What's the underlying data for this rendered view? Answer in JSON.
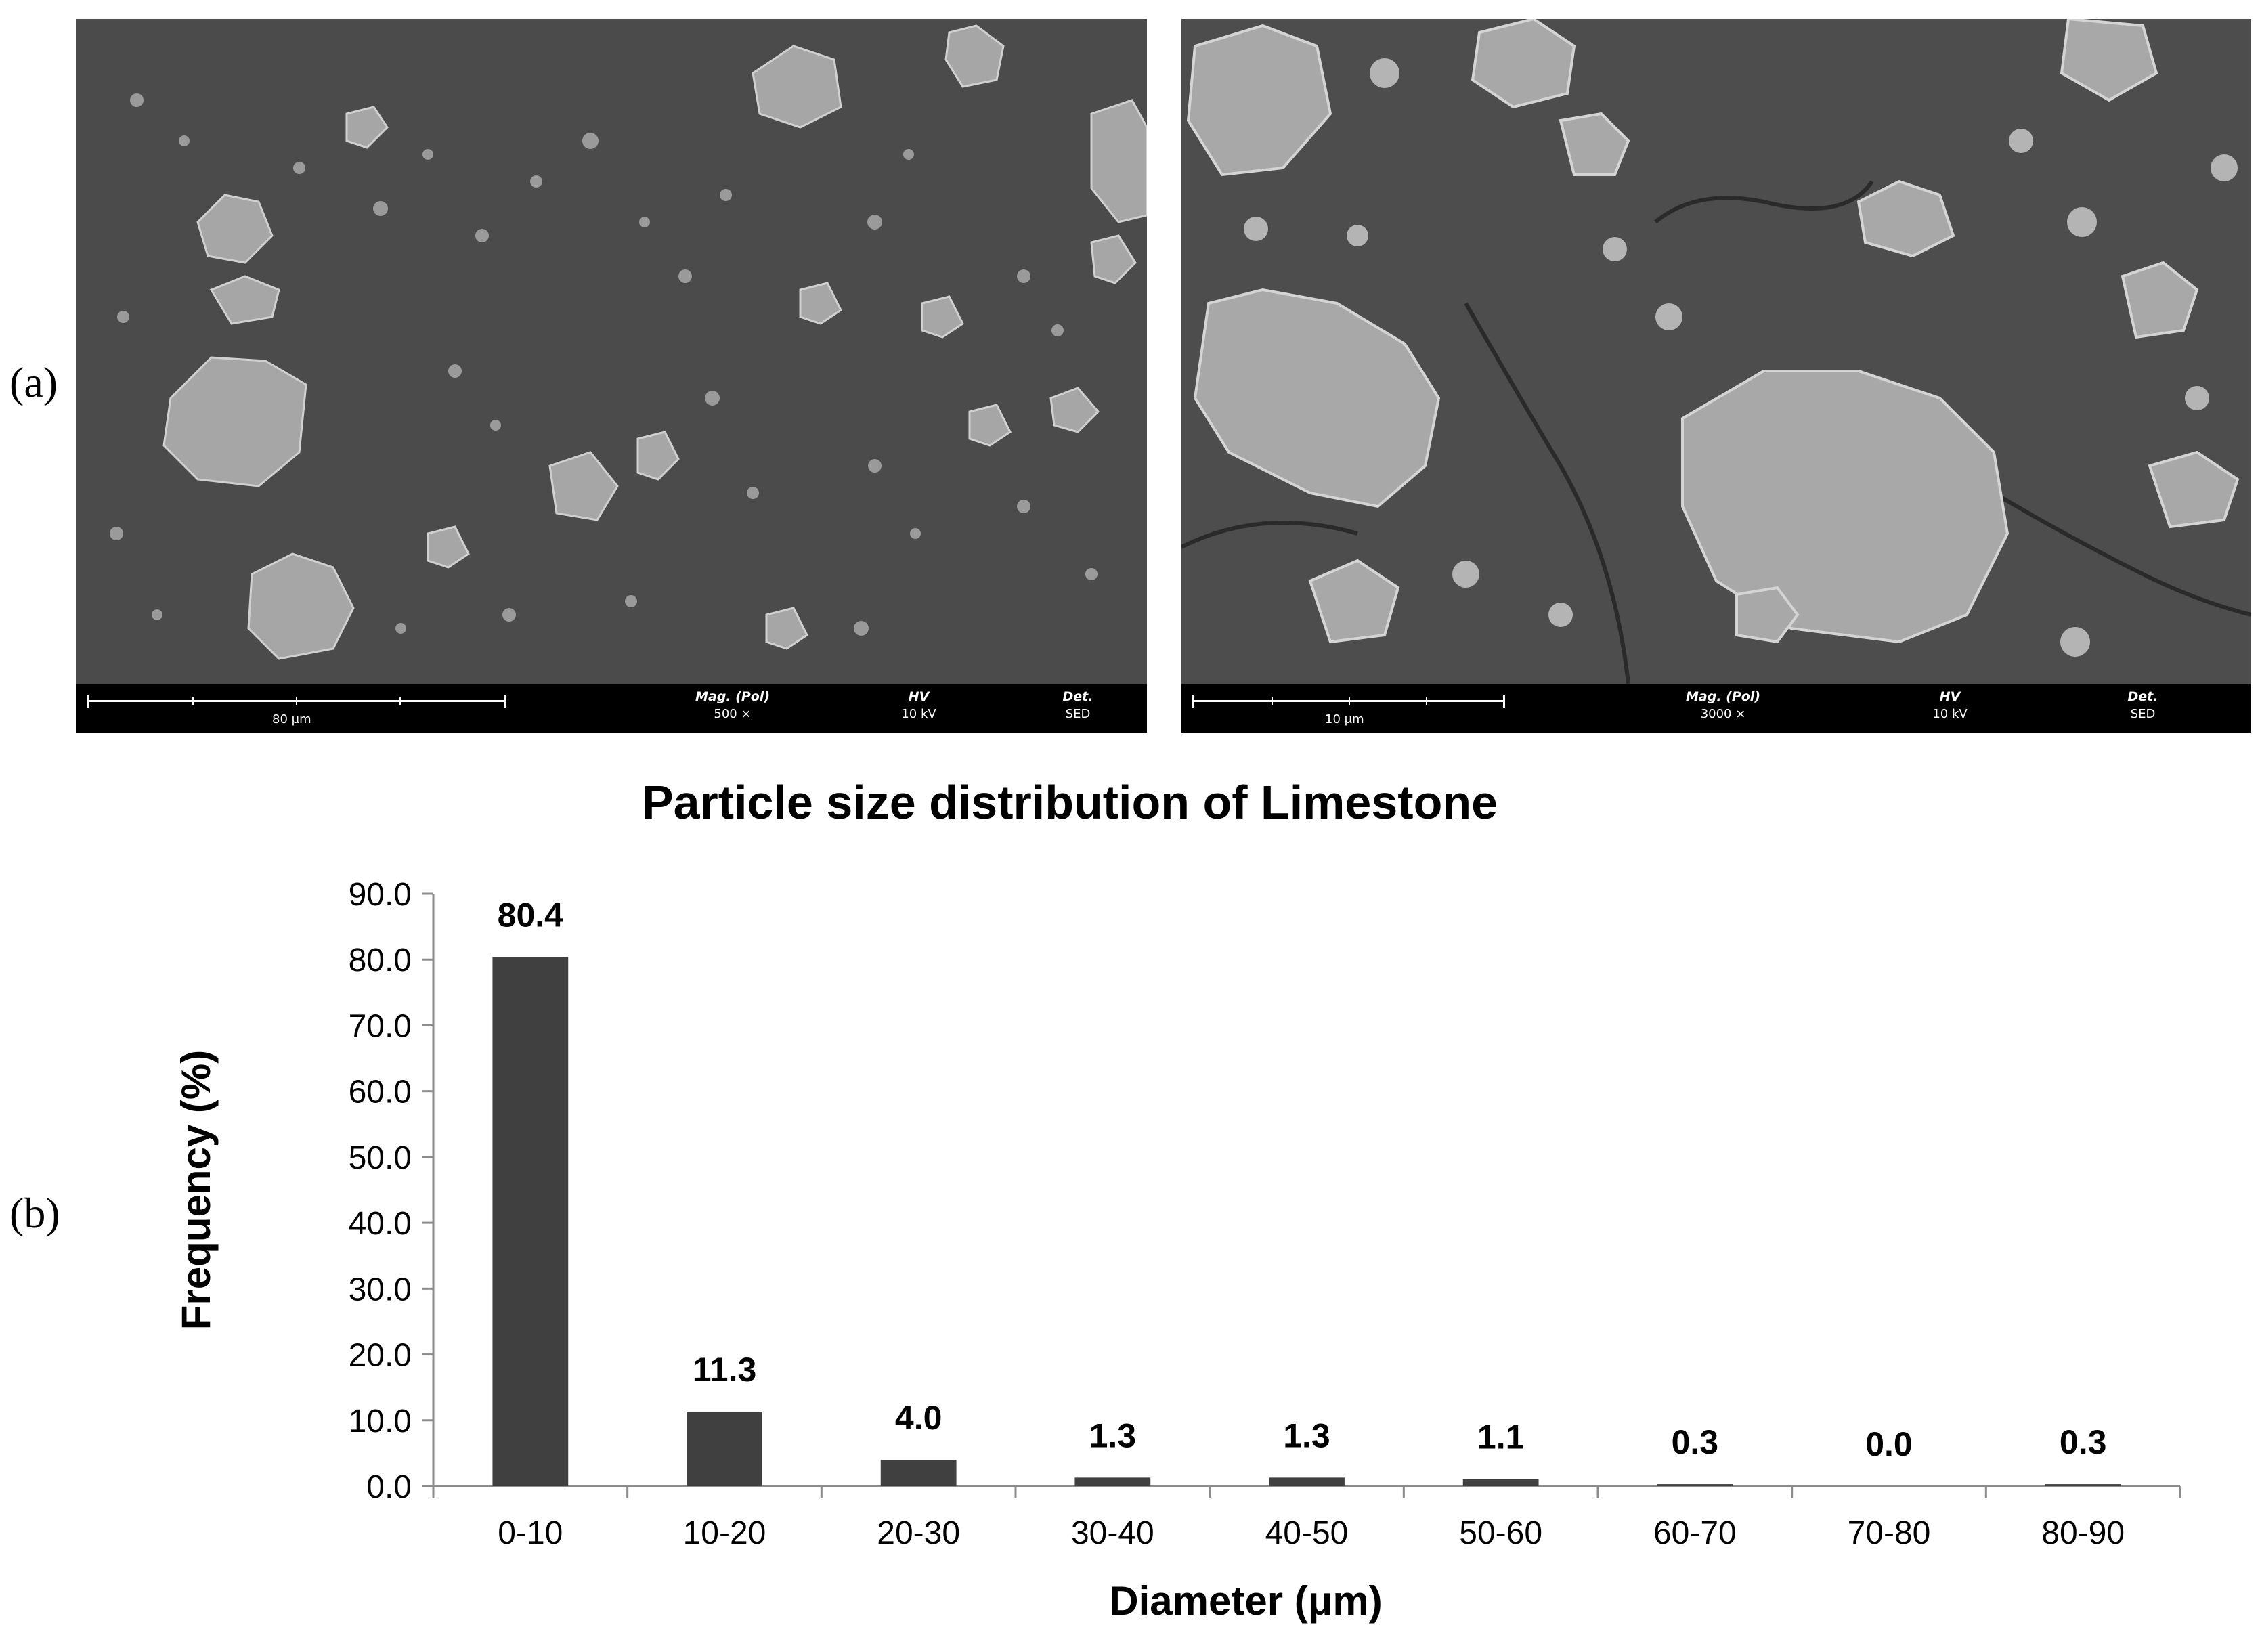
{
  "panels": {
    "a_label": "(a)",
    "b_label": "(b)"
  },
  "sem_left": {
    "scale_text": "80 μm",
    "mag_header": "Mag. (Pol)",
    "mag_value": "500 ×",
    "hv_header": "HV",
    "hv_value": "10 kV",
    "det_header": "Det.",
    "det_value": "SED"
  },
  "sem_right": {
    "scale_text": "10 μm",
    "mag_header": "Mag. (Pol)",
    "mag_value": "3000 ×",
    "hv_header": "HV",
    "hv_value": "10 kV",
    "det_header": "Det.",
    "det_value": "SED"
  },
  "colors": {
    "bar": "#404040",
    "axis": "#8c8c8c",
    "sem_bg": "#4a4a4a",
    "particle": "#a8a8a8"
  },
  "chart_data": {
    "type": "bar",
    "title": "Particle size distribution of Limestone",
    "xlabel": "Diameter (μm)",
    "ylabel": "Frequency (%)",
    "categories": [
      "0-10",
      "10-20",
      "20-30",
      "30-40",
      "40-50",
      "50-60",
      "60-70",
      "70-80",
      "80-90"
    ],
    "values": [
      80.4,
      11.3,
      4.0,
      1.3,
      1.3,
      1.1,
      0.3,
      0.0,
      0.3
    ],
    "value_labels": [
      "80.4",
      "11.3",
      "4.0",
      "1.3",
      "1.3",
      "1.1",
      "0.3",
      "0.0",
      "0.3"
    ],
    "ylim": [
      0,
      90
    ],
    "yticks": [
      "0.0",
      "10.0",
      "20.0",
      "30.0",
      "40.0",
      "50.0",
      "60.0",
      "70.0",
      "80.0",
      "90.0"
    ],
    "grid": false,
    "legend": "none"
  }
}
